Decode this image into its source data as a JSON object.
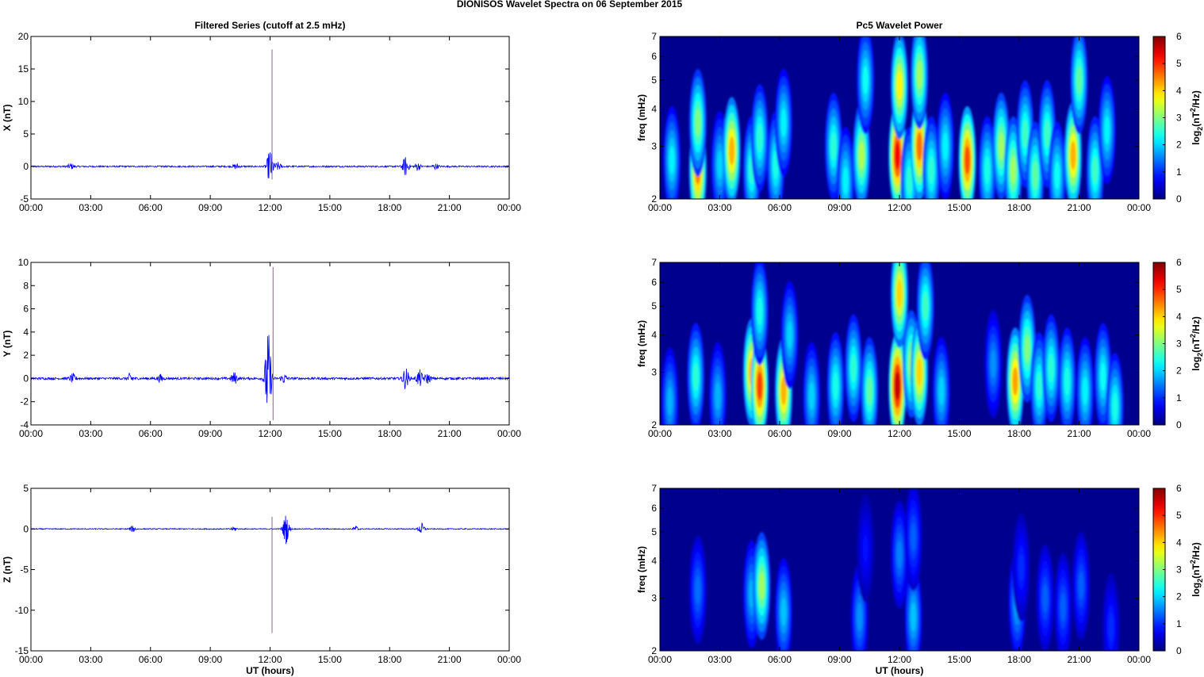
{
  "figure_title": "DIONISOS Wavelet Spectra on 06 September 2015",
  "colors": {
    "trace": "#0000ff",
    "spike": "#8a6a8a",
    "frame": "#000000",
    "colormap": "jet",
    "spectrum_background": "#00008f"
  },
  "chart_data": [
    {
      "type": "line",
      "id": "x-series",
      "title": "Filtered Series (cutoff at 2.5 mHz)",
      "xlabel": "",
      "ylabel": "X (nT)",
      "x_ticks": [
        "00:00",
        "03:00",
        "06:00",
        "09:00",
        "12:00",
        "15:00",
        "18:00",
        "21:00",
        "00:00"
      ],
      "y_ticks": [
        -5,
        0,
        5,
        10,
        15,
        20
      ],
      "ylim": [
        -5,
        20
      ],
      "baseline_amplitude": 0.12,
      "spike": {
        "time_h": 12.1,
        "min": -2,
        "max": 18
      },
      "bursts": [
        {
          "time_h": 2.0,
          "amp": 0.4
        },
        {
          "time_h": 10.3,
          "amp": 0.4
        },
        {
          "time_h": 12.0,
          "amp": 2.7
        },
        {
          "time_h": 12.4,
          "amp": 0.6
        },
        {
          "time_h": 18.8,
          "amp": 1.5
        },
        {
          "time_h": 19.4,
          "amp": 0.6
        },
        {
          "time_h": 20.3,
          "amp": 0.4
        }
      ]
    },
    {
      "type": "heatmap",
      "id": "x-spectrum",
      "title": "Pc5 Wavelet Power",
      "xlabel": "",
      "ylabel": "freq (mHz)",
      "x_ticks": [
        "00:00",
        "03:00",
        "06:00",
        "09:00",
        "12:00",
        "15:00",
        "18:00",
        "21:00",
        "00:00"
      ],
      "y_ticks": [
        2,
        3,
        4,
        5,
        6,
        7
      ],
      "y_scale": "log",
      "ylim": [
        2,
        7
      ],
      "colorbar": {
        "label_main": "log",
        "label_sub": "2",
        "label_paren": "(nT",
        "label_sup": "2",
        "label_end": "/Hz)",
        "ticks": [
          0,
          1,
          2,
          3,
          4,
          5,
          6
        ],
        "range": [
          0,
          6
        ]
      },
      "blobs": [
        {
          "t": 0.6,
          "f": 2.7,
          "p": 2.2
        },
        {
          "t": 1.9,
          "f": 2.5,
          "p": 4.5
        },
        {
          "t": 1.9,
          "f": 3.6,
          "p": 3.0
        },
        {
          "t": 3.0,
          "f": 2.6,
          "p": 2.0
        },
        {
          "t": 3.6,
          "f": 2.9,
          "p": 4.2
        },
        {
          "t": 4.6,
          "f": 2.5,
          "p": 2.5
        },
        {
          "t": 5.0,
          "f": 3.2,
          "p": 2.5
        },
        {
          "t": 5.8,
          "f": 2.6,
          "p": 2.4
        },
        {
          "t": 6.2,
          "f": 3.6,
          "p": 2.2
        },
        {
          "t": 8.7,
          "f": 3.0,
          "p": 2.5
        },
        {
          "t": 9.3,
          "f": 2.3,
          "p": 2.2
        },
        {
          "t": 10.1,
          "f": 2.8,
          "p": 3.3
        },
        {
          "t": 10.3,
          "f": 5.0,
          "p": 2.3
        },
        {
          "t": 11.9,
          "f": 2.8,
          "p": 5.3
        },
        {
          "t": 12.0,
          "f": 4.8,
          "p": 3.8
        },
        {
          "t": 12.5,
          "f": 2.3,
          "p": 2.5
        },
        {
          "t": 13.0,
          "f": 3.0,
          "p": 4.6
        },
        {
          "t": 13.0,
          "f": 5.2,
          "p": 3.2
        },
        {
          "t": 13.6,
          "f": 2.5,
          "p": 2.5
        },
        {
          "t": 14.3,
          "f": 3.0,
          "p": 2.2
        },
        {
          "t": 15.4,
          "f": 2.7,
          "p": 4.8
        },
        {
          "t": 16.4,
          "f": 2.5,
          "p": 2.4
        },
        {
          "t": 17.1,
          "f": 3.0,
          "p": 3.2
        },
        {
          "t": 17.7,
          "f": 2.5,
          "p": 3.2
        },
        {
          "t": 18.3,
          "f": 3.3,
          "p": 2.6
        },
        {
          "t": 18.8,
          "f": 2.4,
          "p": 2.8
        },
        {
          "t": 19.4,
          "f": 3.3,
          "p": 2.6
        },
        {
          "t": 19.9,
          "f": 2.4,
          "p": 2.3
        },
        {
          "t": 20.7,
          "f": 2.8,
          "p": 4.2
        },
        {
          "t": 21.0,
          "f": 5.0,
          "p": 2.8
        },
        {
          "t": 21.8,
          "f": 2.5,
          "p": 2.6
        },
        {
          "t": 22.4,
          "f": 3.4,
          "p": 2.2
        }
      ]
    },
    {
      "type": "line",
      "id": "y-series",
      "title": "",
      "xlabel": "",
      "ylabel": "Y (nT)",
      "x_ticks": [
        "00:00",
        "03:00",
        "06:00",
        "09:00",
        "12:00",
        "15:00",
        "18:00",
        "21:00",
        "00:00"
      ],
      "y_ticks": [
        -4,
        -2,
        0,
        2,
        4,
        6,
        8,
        10
      ],
      "ylim": [
        -4,
        10
      ],
      "baseline_amplitude": 0.1,
      "spike": {
        "time_h": 12.15,
        "min": -3.6,
        "max": 9.6
      },
      "bursts": [
        {
          "time_h": 2.1,
          "amp": 0.35
        },
        {
          "time_h": 5.0,
          "amp": 0.45
        },
        {
          "time_h": 6.5,
          "amp": 0.3
        },
        {
          "time_h": 10.2,
          "amp": 0.5
        },
        {
          "time_h": 11.9,
          "amp": 4.1
        },
        {
          "time_h": 12.7,
          "amp": 0.4
        },
        {
          "time_h": 18.8,
          "amp": 0.9
        },
        {
          "time_h": 19.5,
          "amp": 0.7
        },
        {
          "time_h": 19.9,
          "amp": 0.4
        }
      ]
    },
    {
      "type": "heatmap",
      "id": "y-spectrum",
      "title": "",
      "xlabel": "",
      "ylabel": "freq (mHz)",
      "x_ticks": [
        "00:00",
        "03:00",
        "06:00",
        "09:00",
        "12:00",
        "15:00",
        "18:00",
        "21:00",
        "00:00"
      ],
      "y_ticks": [
        2,
        3,
        4,
        5,
        6,
        7
      ],
      "y_scale": "log",
      "ylim": [
        2,
        7
      ],
      "colorbar": {
        "label_main": "log",
        "label_sub": "2",
        "label_paren": "(nT",
        "label_sup": "2",
        "label_end": "/Hz)",
        "ticks": [
          0,
          1,
          2,
          3,
          4,
          5,
          6
        ],
        "range": [
          0,
          6
        ]
      },
      "blobs": [
        {
          "t": 0.5,
          "f": 2.4,
          "p": 1.8
        },
        {
          "t": 1.8,
          "f": 2.9,
          "p": 2.5
        },
        {
          "t": 2.9,
          "f": 2.5,
          "p": 1.8
        },
        {
          "t": 4.6,
          "f": 3.0,
          "p": 4.2
        },
        {
          "t": 5.0,
          "f": 2.7,
          "p": 4.9
        },
        {
          "t": 5.0,
          "f": 4.8,
          "p": 2.4
        },
        {
          "t": 6.2,
          "f": 2.6,
          "p": 4.2
        },
        {
          "t": 6.5,
          "f": 4.0,
          "p": 2.0
        },
        {
          "t": 7.6,
          "f": 2.5,
          "p": 2.0
        },
        {
          "t": 8.8,
          "f": 2.7,
          "p": 2.4
        },
        {
          "t": 9.7,
          "f": 3.1,
          "p": 2.5
        },
        {
          "t": 10.5,
          "f": 2.6,
          "p": 2.8
        },
        {
          "t": 11.9,
          "f": 2.7,
          "p": 5.6
        },
        {
          "t": 12.0,
          "f": 5.5,
          "p": 4.0
        },
        {
          "t": 12.6,
          "f": 3.2,
          "p": 3.2
        },
        {
          "t": 13.0,
          "f": 3.0,
          "p": 4.0
        },
        {
          "t": 13.3,
          "f": 5.0,
          "p": 2.6
        },
        {
          "t": 14.1,
          "f": 2.6,
          "p": 2.0
        },
        {
          "t": 16.7,
          "f": 3.2,
          "p": 1.6
        },
        {
          "t": 17.8,
          "f": 2.8,
          "p": 4.3
        },
        {
          "t": 18.4,
          "f": 3.6,
          "p": 3.0
        },
        {
          "t": 19.0,
          "f": 2.7,
          "p": 2.5
        },
        {
          "t": 19.6,
          "f": 3.1,
          "p": 2.5
        },
        {
          "t": 20.4,
          "f": 2.8,
          "p": 2.4
        },
        {
          "t": 21.3,
          "f": 2.6,
          "p": 2.2
        },
        {
          "t": 22.2,
          "f": 2.9,
          "p": 2.3
        },
        {
          "t": 22.8,
          "f": 2.3,
          "p": 2.4
        }
      ]
    },
    {
      "type": "line",
      "id": "z-series",
      "title": "",
      "xlabel": "UT (hours)",
      "ylabel": "Z (nT)",
      "x_ticks": [
        "00:00",
        "03:00",
        "06:00",
        "09:00",
        "12:00",
        "15:00",
        "18:00",
        "21:00",
        "00:00"
      ],
      "y_ticks": [
        -15,
        -10,
        -5,
        0,
        5
      ],
      "ylim": [
        -15,
        5
      ],
      "baseline_amplitude": 0.06,
      "spike": {
        "time_h": 12.1,
        "min": -12.8,
        "max": 1.5
      },
      "bursts": [
        {
          "time_h": 5.1,
          "amp": 0.35
        },
        {
          "time_h": 10.2,
          "amp": 0.25
        },
        {
          "time_h": 12.8,
          "amp": 1.8
        },
        {
          "time_h": 16.3,
          "amp": 0.35
        },
        {
          "time_h": 19.6,
          "amp": 0.7
        }
      ]
    },
    {
      "type": "heatmap",
      "id": "z-spectrum",
      "title": "",
      "xlabel": "UT (hours)",
      "ylabel": "freq (mHz)",
      "x_ticks": [
        "00:00",
        "03:00",
        "06:00",
        "09:00",
        "12:00",
        "15:00",
        "18:00",
        "21:00",
        "00:00"
      ],
      "y_ticks": [
        2,
        3,
        4,
        5,
        6,
        7
      ],
      "y_scale": "log",
      "ylim": [
        2,
        7
      ],
      "colorbar": {
        "label_main": "log",
        "label_sub": "2",
        "label_paren": "(nT",
        "label_sup": "2",
        "label_end": "/Hz)",
        "ticks": [
          0,
          1,
          2,
          3,
          4,
          5,
          6
        ],
        "range": [
          0,
          6
        ]
      },
      "blobs": [
        {
          "t": 1.9,
          "f": 3.2,
          "p": 1.4
        },
        {
          "t": 4.6,
          "f": 3.1,
          "p": 1.8
        },
        {
          "t": 5.1,
          "f": 3.3,
          "p": 3.2
        },
        {
          "t": 6.2,
          "f": 2.7,
          "p": 1.9
        },
        {
          "t": 10.0,
          "f": 2.6,
          "p": 1.6
        },
        {
          "t": 10.3,
          "f": 4.4,
          "p": 0.8
        },
        {
          "t": 12.0,
          "f": 4.2,
          "p": 1.5
        },
        {
          "t": 12.7,
          "f": 2.6,
          "p": 1.9
        },
        {
          "t": 12.7,
          "f": 4.8,
          "p": 1.3
        },
        {
          "t": 17.9,
          "f": 2.9,
          "p": 1.8
        },
        {
          "t": 18.1,
          "f": 3.8,
          "p": 1.0
        },
        {
          "t": 19.3,
          "f": 3.0,
          "p": 1.3
        },
        {
          "t": 20.2,
          "f": 2.8,
          "p": 1.3
        },
        {
          "t": 21.1,
          "f": 3.3,
          "p": 1.3
        },
        {
          "t": 22.6,
          "f": 2.4,
          "p": 1.0
        }
      ]
    }
  ]
}
